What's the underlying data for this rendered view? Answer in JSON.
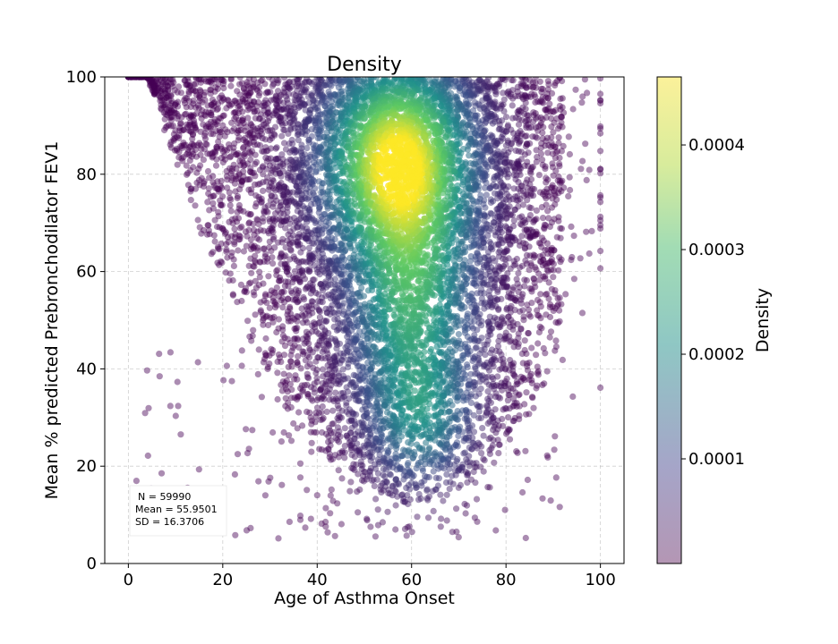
{
  "chart_data": {
    "type": "scatter",
    "title": "Density",
    "xlabel": "Age of Asthma Onset",
    "ylabel": "Mean % predicted Prebronchodilator FEV1",
    "xlim": [
      -5,
      105
    ],
    "ylim": [
      0,
      100
    ],
    "x_ticks": [
      "0",
      "20",
      "40",
      "60",
      "80",
      "100"
    ],
    "y_ticks": [
      "0",
      "20",
      "40",
      "60",
      "80",
      "100"
    ],
    "grid": true,
    "point_color_by": "density",
    "colormap": "viridis",
    "point_alpha": 0.45,
    "density_peak": {
      "x": 57,
      "y": 83
    },
    "colorbar": {
      "label": "Density",
      "ticks": [
        "0.0001",
        "0.0002",
        "0.0003",
        "0.0004"
      ],
      "range": [
        0.0,
        0.000465
      ]
    },
    "stats": {
      "n_line": "N =  59990",
      "mean_line": "Mean =  55.9501",
      "sd_line": "SD =  16.3706"
    },
    "colors": {
      "viridis_low": "#440154",
      "viridis_mid": "#21918c",
      "viridis_high": "#fde725"
    }
  }
}
